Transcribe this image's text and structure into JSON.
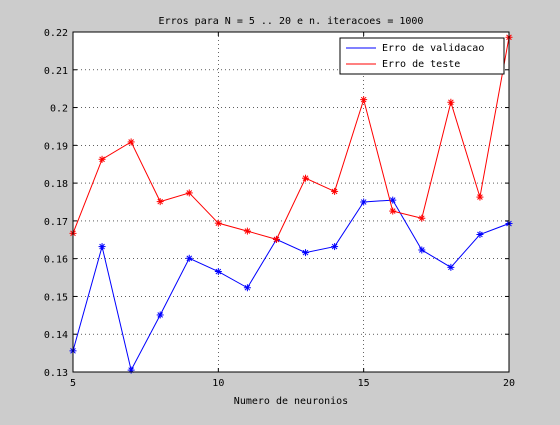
{
  "chart_data": {
    "type": "line",
    "title": "Erros para N = 5 .. 20 e n. iteracoes = 1000",
    "xlabel": "Numero de neuronios",
    "ylabel": "",
    "xlim": [
      5,
      20
    ],
    "ylim": [
      0.13,
      0.22
    ],
    "xticks": [
      5,
      10,
      15,
      20
    ],
    "yticks": [
      0.13,
      0.14,
      0.15,
      0.16,
      0.17,
      0.18,
      0.19,
      0.2,
      0.21,
      0.22
    ],
    "ytick_labels": [
      "0.13",
      "0.14",
      "0.15",
      "0.16",
      "0.17",
      "0.18",
      "0.19",
      "0.2",
      "0.21",
      "0.22"
    ],
    "grid": true,
    "legend_position": "top-right",
    "x": [
      5,
      6,
      7,
      8,
      9,
      10,
      11,
      12,
      13,
      14,
      15,
      16,
      17,
      18,
      19,
      20
    ],
    "series": [
      {
        "name": "Erro de validacao",
        "color": "#0000ff",
        "values": [
          0.1356,
          0.1632,
          0.1305,
          0.1451,
          0.1601,
          0.1566,
          0.1523,
          0.1651,
          0.1616,
          0.1632,
          0.175,
          0.1755,
          0.1623,
          0.1577,
          0.1664,
          0.1693
        ]
      },
      {
        "name": "Erro de teste",
        "color": "#ff0000",
        "values": [
          0.1667,
          0.1863,
          0.1909,
          0.1751,
          0.1774,
          0.1694,
          0.1673,
          0.1651,
          0.1813,
          0.1778,
          0.2021,
          0.1726,
          0.1707,
          0.2014,
          0.1763,
          0.2186
        ]
      }
    ]
  }
}
